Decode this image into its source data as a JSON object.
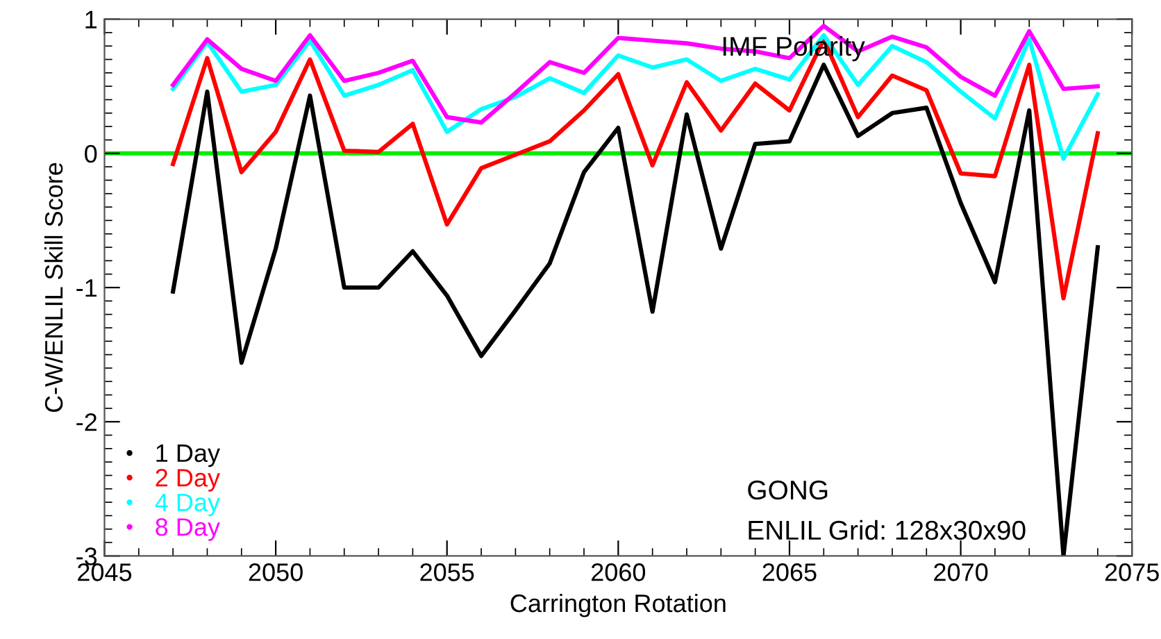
{
  "chart_data": {
    "type": "line",
    "xlabel": "Carrington Rotation",
    "ylabel": "C-W/ENLIL Skill Score",
    "x": [
      2047,
      2048,
      2049,
      2050,
      2051,
      2052,
      2053,
      2054,
      2055,
      2056,
      2057,
      2058,
      2059,
      2060,
      2061,
      2062,
      2063,
      2064,
      2065,
      2066,
      2067,
      2068,
      2069,
      2070,
      2071,
      2072,
      2073,
      2074
    ],
    "series": [
      {
        "name": "1 Day",
        "color": "#000000",
        "values": [
          -1.03,
          0.46,
          -1.56,
          -0.71,
          0.43,
          -1.0,
          -1.0,
          -0.73,
          -1.06,
          -1.51,
          -1.17,
          -0.82,
          -0.14,
          0.19,
          -1.18,
          0.29,
          -0.71,
          0.07,
          0.09,
          0.66,
          0.13,
          0.3,
          0.34,
          -0.37,
          -0.96,
          0.32,
          -3.0,
          -0.7
        ]
      },
      {
        "name": "2 Day",
        "color": "#ff0000",
        "values": [
          -0.08,
          0.71,
          -0.14,
          0.16,
          0.7,
          0.02,
          0.01,
          0.22,
          -0.53,
          -0.11,
          -0.01,
          0.09,
          0.32,
          0.59,
          -0.09,
          0.53,
          0.17,
          0.52,
          0.32,
          0.85,
          0.27,
          0.58,
          0.47,
          -0.15,
          -0.17,
          0.66,
          -1.08,
          0.15
        ]
      },
      {
        "name": "4 Day",
        "color": "#00ffff",
        "values": [
          0.48,
          0.83,
          0.46,
          0.51,
          0.84,
          0.43,
          0.51,
          0.62,
          0.16,
          0.33,
          0.42,
          0.56,
          0.45,
          0.73,
          0.64,
          0.7,
          0.54,
          0.63,
          0.55,
          0.88,
          0.51,
          0.8,
          0.68,
          0.46,
          0.26,
          0.85,
          -0.04,
          0.44
        ]
      },
      {
        "name": "8 Day",
        "color": "#ff00ff",
        "values": [
          0.51,
          0.85,
          0.63,
          0.54,
          0.88,
          0.54,
          0.6,
          0.69,
          0.27,
          0.23,
          0.45,
          0.68,
          0.6,
          0.86,
          0.84,
          0.82,
          0.78,
          0.76,
          0.71,
          0.95,
          0.76,
          0.87,
          0.79,
          0.57,
          0.43,
          0.91,
          0.48,
          0.5
        ]
      }
    ],
    "xlim": [
      2045,
      2075
    ],
    "xticks": [
      2045,
      2050,
      2055,
      2060,
      2065,
      2070,
      2075
    ],
    "ylim": [
      -3,
      1
    ],
    "yticks": [
      -3,
      -2,
      -1,
      0,
      1
    ],
    "ref_lines": [
      {
        "axis": "y",
        "value": 0,
        "color": "#00ee00"
      }
    ],
    "annotations": [
      {
        "text": "IMF Polarity",
        "x": 2063,
        "y": 0.78
      },
      "GONG",
      "ENLIL Grid: 128x30x90"
    ],
    "legend": "bottom left",
    "grid": false,
    "marker": "none",
    "line_style": "solid"
  }
}
